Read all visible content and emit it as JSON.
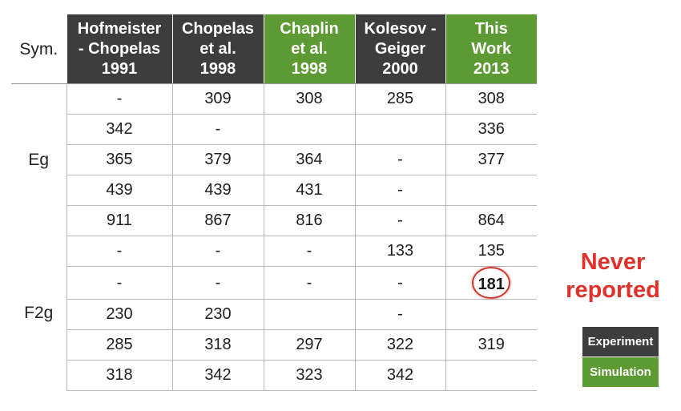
{
  "chart_data": {
    "type": "table",
    "columns": [
      {
        "name": "Hofmeister - Chopelas 1991",
        "lines": [
          "Hofmeister",
          "- Chopelas",
          "1991"
        ],
        "kind": "Experiment"
      },
      {
        "name": "Chopelas et al. 1998",
        "lines": [
          "Chopelas",
          "et al.",
          "1998"
        ],
        "kind": "Experiment"
      },
      {
        "name": "Chaplin et al. 1998",
        "lines": [
          "Chaplin",
          "et al.",
          "1998"
        ],
        "kind": "Simulation"
      },
      {
        "name": "Kolesov - Geiger 2000",
        "lines": [
          "Kolesov -",
          "Geiger",
          "2000"
        ],
        "kind": "Experiment"
      },
      {
        "name": "This Work 2013",
        "lines": [
          "This",
          "Work",
          "2013"
        ],
        "kind": "Simulation"
      }
    ],
    "sym_header": "Sym.",
    "groups": [
      {
        "sym": "Eg",
        "rows": [
          [
            "-",
            "309",
            "308",
            "285",
            "308"
          ],
          [
            "342",
            "-",
            "",
            "",
            "336"
          ],
          [
            "365",
            "379",
            "364",
            "-",
            "377"
          ],
          [
            "439",
            "439",
            "431",
            "-",
            ""
          ],
          [
            "911",
            "867",
            "816",
            "-",
            "864"
          ]
        ]
      },
      {
        "sym": "F2g",
        "rows": [
          [
            "-",
            "-",
            "-",
            "133",
            "135"
          ],
          [
            "-",
            "-",
            "-",
            "-",
            "181"
          ],
          [
            "230",
            "230",
            "",
            "-",
            ""
          ],
          [
            "285",
            "318",
            "297",
            "322",
            "319"
          ],
          [
            "318",
            "342",
            "323",
            "342",
            ""
          ]
        ]
      }
    ],
    "highlight": {
      "group": 1,
      "row": 1,
      "col": 4,
      "value": "181"
    },
    "colors": {
      "experiment": "#3d3d3d",
      "simulation": "#5e9a34",
      "highlight": "#d23a2f"
    }
  },
  "annotation": {
    "lines": [
      "Never",
      "reported"
    ]
  },
  "legend": {
    "experiment": "Experiment",
    "simulation": "Simulation"
  }
}
